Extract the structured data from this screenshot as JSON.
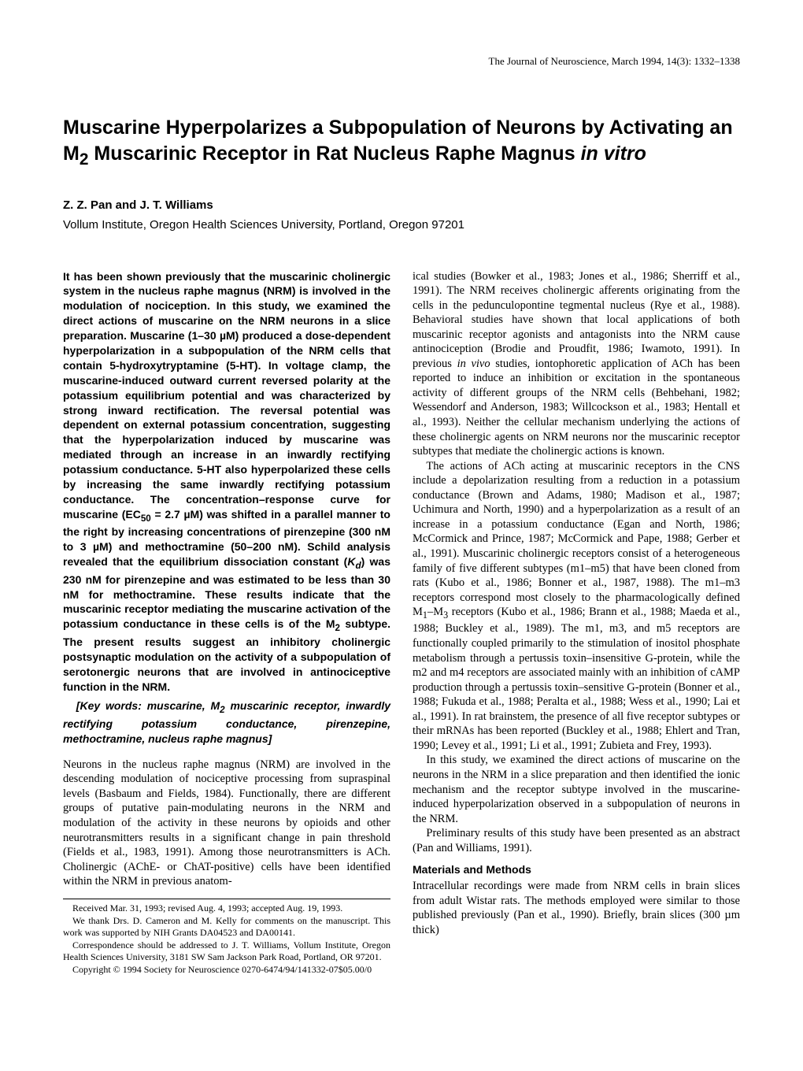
{
  "running_head": "The Journal of Neuroscience, March 1994, 14(3): 1332–1338",
  "title_html": "Muscarine Hyperpolarizes a Subpopulation of Neurons by Activating an M<sub>2</sub> Muscarinic Receptor in Rat Nucleus Raphe Magnus <i>in vitro</i>",
  "authors": "Z. Z. Pan and J. T. Williams",
  "affiliation": "Vollum Institute, Oregon Health Sciences University, Portland, Oregon 97201",
  "abstract_html": "It has been shown previously that the muscarinic cholinergic system in the nucleus raphe magnus (NRM) is involved in the modulation of nociception. In this study, we examined the direct actions of muscarine on the NRM neurons in a slice preparation. Muscarine (1–30 µM) produced a dose-dependent hyperpolarization in a subpopulation of the NRM cells that contain 5-hydroxytryptamine (5-HT). In voltage clamp, the muscarine-induced outward current reversed polarity at the potassium equilibrium potential and was characterized by strong inward rectification. The reversal potential was dependent on external potassium concentration, suggesting that the hyperpolarization induced by muscarine was mediated through an increase in an inwardly rectifying potassium conductance. 5-HT also hyperpolarized these cells by increasing the same inwardly rectifying potassium conductance. The concentration–response curve for muscarine (EC<sub>50</sub> = 2.7 µM) was shifted in a parallel manner to the right by increasing concentrations of pirenzepine (300 nM to 3 µM) and methoctramine (50–200 nM). Schild analysis revealed that the equilibrium dissociation constant (<i>K<sub>d</sub></i>) was 230 nM for pirenzepine and was estimated to be less than 30 nM for methoctramine. These results indicate that the muscarinic receptor mediating the muscarine activation of the potassium conductance in these cells is of the M<sub>2</sub> subtype. The present results suggest an inhibitory cholinergic postsynaptic modulation on the activity of a subpopulation of serotonergic neurons that are involved in antinociceptive function in the NRM.",
  "keywords_html": "[Key words: muscarine, M<sub>2</sub> muscarinic receptor, inwardly rectifying potassium conductance, pirenzepine, methoctramine, nucleus raphe magnus]",
  "left_intro_para": "Neurons in the nucleus raphe magnus (NRM) are involved in the descending modulation of nociceptive processing from supraspinal levels (Basbaum and Fields, 1984). Functionally, there are different groups of putative pain-modulating neurons in the NRM and modulation of the activity in these neurons by opioids and other neurotransmitters results in a significant change in pain threshold (Fields et al., 1983, 1991). Among those neurotransmitters is ACh. Cholinergic (AChE- or ChAT-positive) cells have been identified within the NRM in previous anatom-",
  "footnotes": {
    "received": "Received Mar. 31, 1993; revised Aug. 4, 1993; accepted Aug. 19, 1993.",
    "ack": "We thank Drs. D. Cameron and M. Kelly for comments on the manuscript. This work was supported by NIH Grants DA04523 and DA00141.",
    "corr": "Correspondence should be addressed to J. T. Williams, Vollum Institute, Oregon Health Sciences University, 3181 SW Sam Jackson Park Road, Portland, OR 97201.",
    "copyright": "Copyright © 1994 Society for Neuroscience 0270-6474/94/141332-07$05.00/0"
  },
  "right_paragraphs_html": [
    "ical studies (Bowker et al., 1983; Jones et al., 1986; Sherriff et al., 1991). The NRM receives cholinergic afferents originating from the cells in the pedunculopontine tegmental nucleus (Rye et al., 1988). Behavioral studies have shown that local applications of both muscarinic receptor agonists and antagonists into the NRM cause antinociception (Brodie and Proudfit, 1986; Iwamoto, 1991). In previous <i>in vivo</i> studies, iontophoretic application of ACh has been reported to induce an inhibition or excitation in the spontaneous activity of different groups of the NRM cells (Behbehani, 1982; Wessendorf and Anderson, 1983; Willcockson et al., 1983; Hentall et al., 1993). Neither the cellular mechanism underlying the actions of these cholinergic agents on NRM neurons nor the muscarinic receptor subtypes that mediate the cholinergic actions is known.",
    "The actions of ACh acting at muscarinic receptors in the CNS include a depolarization resulting from a reduction in a potassium conductance (Brown and Adams, 1980; Madison et al., 1987; Uchimura and North, 1990) and a hyperpolarization as a result of an increase in a potassium conductance (Egan and North, 1986; McCormick and Prince, 1987; McCormick and Pape, 1988; Gerber et al., 1991). Muscarinic cholinergic receptors consist of a heterogeneous family of five different subtypes (m1–m5) that have been cloned from rats (Kubo et al., 1986; Bonner et al., 1987, 1988). The m1–m3 receptors correspond most closely to the pharmacologically defined M<sub>1</sub>–M<sub>3</sub> receptors (Kubo et al., 1986; Brann et al., 1988; Maeda et al., 1988; Buckley et al., 1989). The m1, m3, and m5 receptors are functionally coupled primarily to the stimulation of inositol phosphate metabolism through a pertussis toxin–insensitive G-protein, while the m2 and m4 receptors are associated mainly with an inhibition of cAMP production through a pertussis toxin–sensitive G-protein (Bonner et al., 1988; Fukuda et al., 1988; Peralta et al., 1988; Wess et al., 1990; Lai et al., 1991). In rat brainstem, the presence of all five receptor subtypes or their mRNAs has been reported (Buckley et al., 1988; Ehlert and Tran, 1990; Levey et al., 1991; Li et al., 1991; Zubieta and Frey, 1993).",
    "In this study, we examined the direct actions of muscarine on the neurons in the NRM in a slice preparation and then identified the ionic mechanism and the receptor subtype involved in the muscarine-induced hyperpolarization observed in a subpopulation of neurons in the NRM.",
    "Preliminary results of this study have been presented as an abstract (Pan and Williams, 1991)."
  ],
  "materials_head": "Materials and Methods",
  "materials_para": "Intracellular recordings were made from NRM cells in brain slices from adult Wistar rats. The methods employed were similar to those published previously (Pan et al., 1990). Briefly, brain slices (300 µm thick)"
}
